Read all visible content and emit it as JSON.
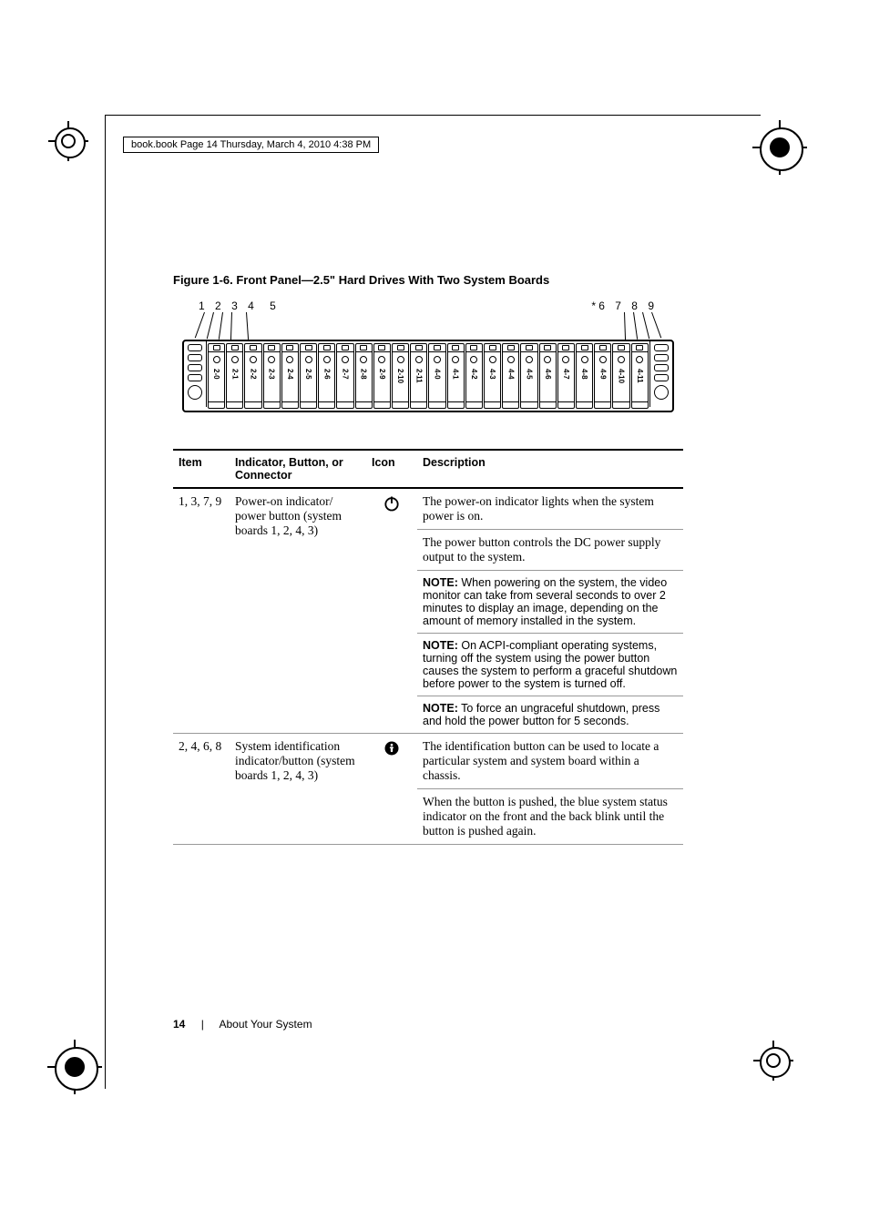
{
  "header_runner": "book.book  Page 14  Thursday, March 4, 2010  4:38 PM",
  "figure": {
    "caption": "Figure 1-6.    Front Panel—2.5\" Hard Drives With Two System Boards",
    "callouts_left": [
      "1",
      "2",
      "3",
      "4",
      "5"
    ],
    "callouts_right": [
      "6",
      "7",
      "8",
      "9"
    ],
    "asterisk": "*",
    "bay_labels": [
      "2-0",
      "2-1",
      "2-2",
      "2-3",
      "2-4",
      "2-5",
      "2-6",
      "2-7",
      "2-8",
      "2-9",
      "2-10",
      "2-11",
      "4-0",
      "4-1",
      "4-2",
      "4-3",
      "4-4",
      "4-5",
      "4-6",
      "4-7",
      "4-8",
      "4-9",
      "4-10",
      "4-11"
    ]
  },
  "table": {
    "headers": {
      "item": "Item",
      "indicator": "Indicator, Button, or Connector",
      "icon": "Icon",
      "description": "Description"
    },
    "rows": [
      {
        "item": "1, 3, 7, 9",
        "indicator": "Power-on indicator/ power button (system boards 1, 2, 4, 3)",
        "icon": "power",
        "desc_blocks": [
          {
            "type": "serif",
            "text": "The power-on indicator lights when the system power is on."
          },
          {
            "type": "serif",
            "text": "The power button controls the DC power supply output to the system."
          },
          {
            "type": "note",
            "label": "NOTE:",
            "text": " When powering on the system, the video monitor can take from several seconds to over 2 minutes to display an image, depending on the amount of memory installed in the system."
          },
          {
            "type": "note",
            "label": "NOTE:",
            "text": " On ACPI-compliant operating systems, turning off the system using the power button causes the system to perform a graceful shutdown before power to the system is turned off."
          },
          {
            "type": "note",
            "label": "NOTE:",
            "text": " To force an ungraceful shutdown, press and hold the power button for 5 seconds."
          }
        ]
      },
      {
        "item": "2, 4, 6, 8",
        "indicator": "System identification indicator/button (system boards 1, 2, 4, 3)",
        "icon": "info",
        "desc_blocks": [
          {
            "type": "serif",
            "text": "The identification button can be used to locate a particular system and system board within a chassis."
          },
          {
            "type": "serif",
            "text": "When the button is pushed, the blue system status indicator on the front and the back blink until the button is pushed again."
          }
        ]
      }
    ]
  },
  "footer": {
    "page": "14",
    "section": "About Your System"
  },
  "colors": {
    "text": "#000000",
    "rule": "#000000",
    "subrule": "#999999",
    "bg": "#ffffff"
  }
}
